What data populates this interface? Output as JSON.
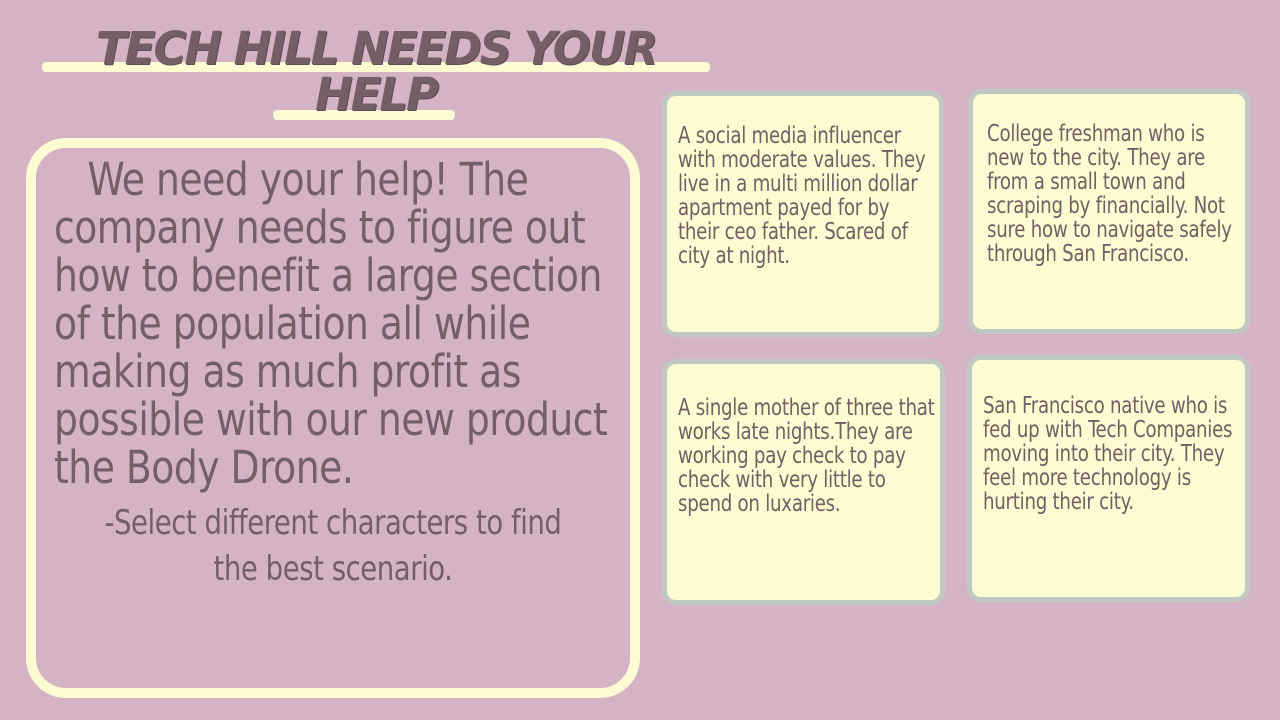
{
  "title": {
    "line1": "TECH HILL NEEDS YOUR",
    "line2": "HELP"
  },
  "main_panel": {
    "intro": "We need your help! The company needs to figure out how to benefit a large section of the population all while making as much profit as possible with our new product the Body Drone.",
    "instruction": "-Select different characters to find the best scenario."
  },
  "characters": [
    {
      "description": "A social media influencer with moderate values. They live in a multi million dollar apartment payed for by their ceo father. Scared of city at night."
    },
    {
      "description": "College freshman who is new to the city. They are from a small town and scraping by financially. Not sure how to navigate safely through San Francisco."
    },
    {
      "description": "A single mother of three that works late nights.They are working pay check to pay check with very little to spend on luxaries."
    },
    {
      "description": "San Francisco native who is fed up with Tech Companies moving into their city. They feel more technology is hurting their city."
    }
  ],
  "colors": {
    "background": "#d4b3c5",
    "card_fill": "#fdfbd1",
    "card_border": "#bfc9c1",
    "text": "#735f65"
  }
}
